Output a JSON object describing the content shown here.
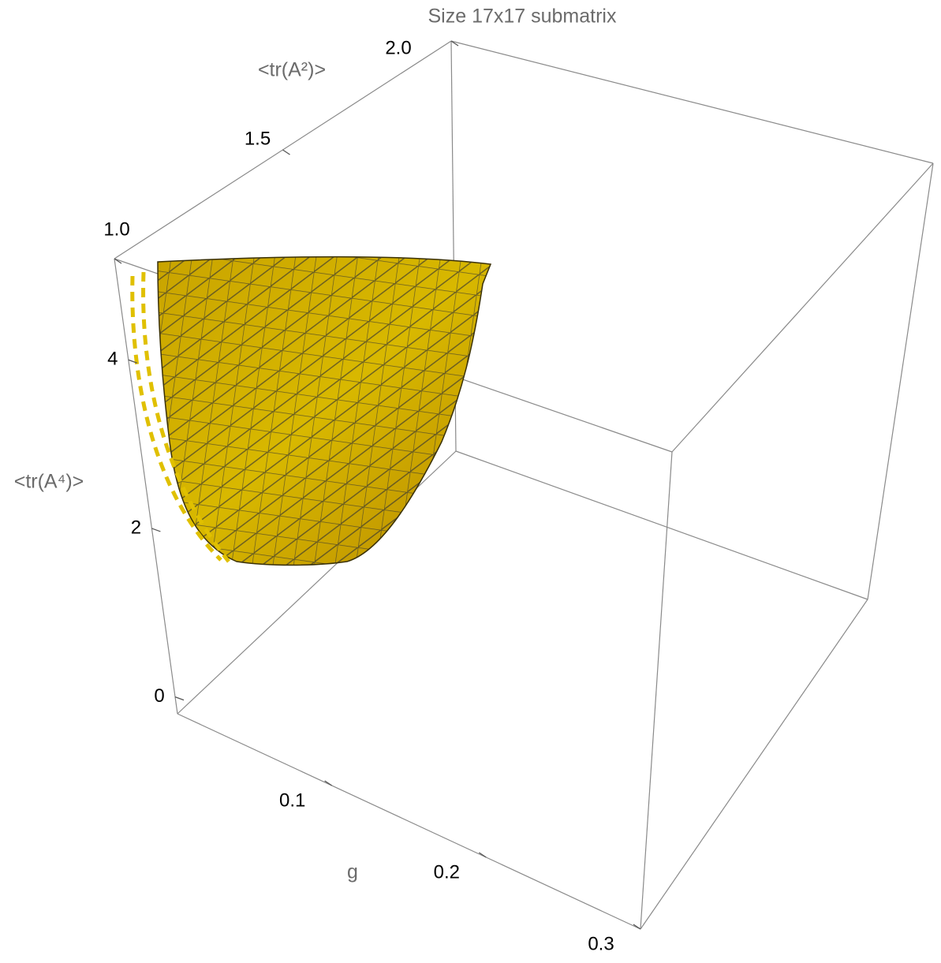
{
  "chart_data": {
    "type": "surface3d",
    "title": "Size 17x17 submatrix",
    "xlabel": "g",
    "ylabel": "<tr(A²)>",
    "zlabel": "<tr(A⁴)>",
    "xlim": [
      0,
      0.3
    ],
    "xticks": [
      0.1,
      0.2,
      0.3
    ],
    "ylim": [
      1,
      2
    ],
    "yticks": [
      {
        "value": 1,
        "label": "1.0"
      },
      1.5,
      {
        "value": 2,
        "label": "2.0"
      }
    ],
    "zlim": [
      -0.2,
      5.2
    ],
    "zticks": [
      0,
      2,
      4
    ],
    "color": "#d4b000"
  }
}
